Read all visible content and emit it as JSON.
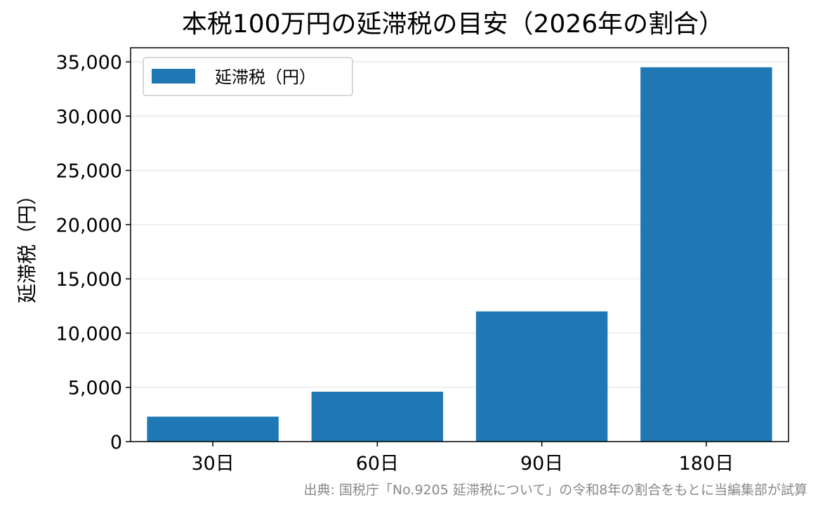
{
  "chart_data": {
    "type": "bar",
    "title": "本税100万円の延滞税の目安（2026年の割合）",
    "xlabel": "",
    "ylabel": "延滞税（円）",
    "categories": [
      "30日",
      "60日",
      "90日",
      "180日"
    ],
    "series": [
      {
        "name": "延滞税（円）",
        "values": [
          2300,
          4600,
          12000,
          34500
        ],
        "color": "#1f77b4"
      }
    ],
    "ylim": [
      0,
      36300
    ],
    "yticks": [
      0,
      5000,
      10000,
      15000,
      20000,
      25000,
      30000,
      35000
    ],
    "ytick_labels": [
      "0",
      "5,000",
      "10,000",
      "15,000",
      "20,000",
      "25,000",
      "30,000",
      "35,000"
    ],
    "grid": "horizontal",
    "legend_position": "top-left"
  },
  "source_note": "出典: 国税庁「No.9205 延滞税について」の令和8年の割合をもとに当編集部が試算"
}
